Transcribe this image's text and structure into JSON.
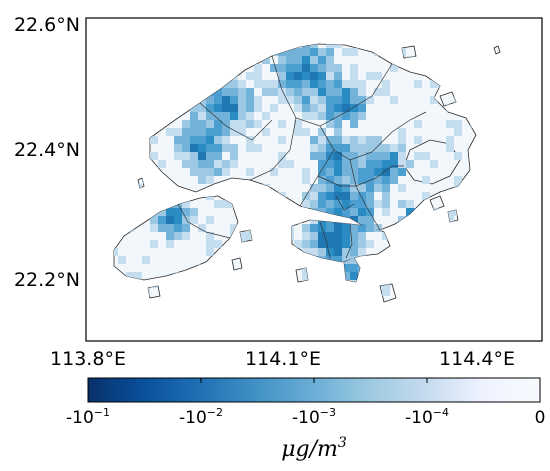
{
  "map": {
    "lat_ticks": [
      "22.6°N",
      "22.4°N",
      "22.2°N"
    ],
    "lon_ticks": [
      "113.8°E",
      "114.1°E",
      "114.4°E"
    ]
  },
  "colorbar": {
    "labels": [
      {
        "base": "-10",
        "exp": "−1"
      },
      {
        "base": "-10",
        "exp": "−2"
      },
      {
        "base": "-10",
        "exp": "−3"
      },
      {
        "base": "-10",
        "exp": "−4"
      },
      {
        "base": "0",
        "exp": ""
      }
    ],
    "unit_base": "μg/m",
    "unit_exp": "3",
    "color_stops": [
      "#08306b",
      "#08519c",
      "#2171b5",
      "#4292c6",
      "#6baed6",
      "#9ecae1",
      "#c6dbef",
      "#eff3ff",
      "#f7fbff"
    ]
  }
}
